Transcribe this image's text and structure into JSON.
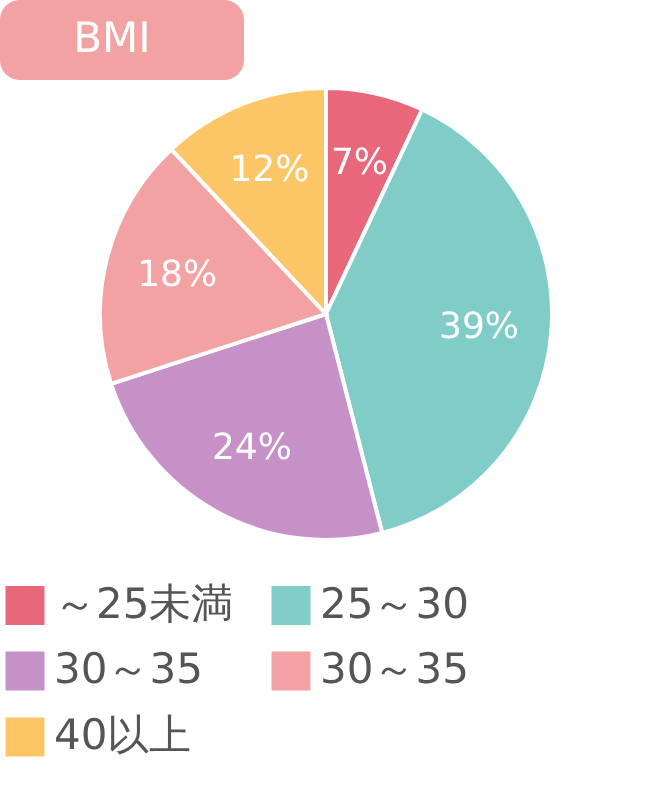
{
  "chart_data": {
    "type": "pie",
    "title": "BMI",
    "categories": [
      "～25未満",
      "25～30",
      "30～35",
      "30～35",
      "40以上"
    ],
    "values": [
      7,
      39,
      24,
      18,
      12
    ],
    "colors": [
      "#e8677b",
      "#80cdc8",
      "#c591c6",
      "#f2a2a2",
      "#fcc566"
    ],
    "value_labels": [
      "7%",
      "39%",
      "24%",
      "18%",
      "12%"
    ],
    "legend": "bottom"
  }
}
